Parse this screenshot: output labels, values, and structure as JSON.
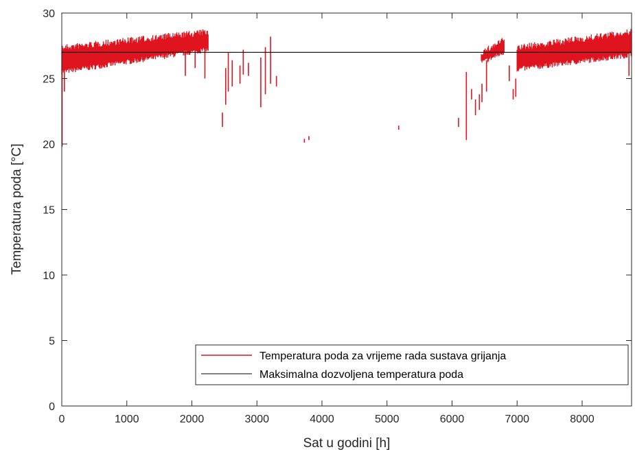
{
  "chart_data": {
    "type": "line",
    "title": "",
    "xlabel": "Sat u godini [h]",
    "ylabel": "Temperatura poda [°C]",
    "xlim": [
      0,
      8760
    ],
    "ylim": [
      0,
      30
    ],
    "xticks": [
      0,
      1000,
      2000,
      3000,
      4000,
      5000,
      6000,
      7000,
      8000
    ],
    "yticks": [
      0,
      5,
      10,
      15,
      20,
      25,
      30
    ],
    "grid": false,
    "legend_position": "bottom-right",
    "series": [
      {
        "name": "Temperatura poda za vrijeme rada sustava grijanja",
        "color": "#e0141e",
        "style": "dense-band-with-gaps",
        "band_segments": [
          {
            "x": [
              0,
              2250
            ],
            "low": [
              25.3,
              27.0
            ],
            "high": [
              27.6,
              28.8
            ]
          },
          {
            "x": [
              6450,
              6800
            ],
            "low": [
              26.0,
              26.8
            ],
            "high": [
              27.2,
              28.2
            ]
          },
          {
            "x": [
              7000,
              8760
            ],
            "low": [
              25.5,
              26.6
            ],
            "high": [
              27.6,
              28.8
            ]
          }
        ],
        "spikes": [
          {
            "x": 5,
            "y_low": 19.8,
            "y_high": 25.5
          },
          {
            "x": 40,
            "y_low": 24.0,
            "y_high": 27.0
          },
          {
            "x": 1900,
            "y_low": 25.2,
            "y_high": 27.8
          },
          {
            "x": 2050,
            "y_low": 25.8,
            "y_high": 28.5
          },
          {
            "x": 2200,
            "y_low": 25.0,
            "y_high": 28.4
          },
          {
            "x": 2470,
            "y_low": 21.3,
            "y_high": 22.4
          },
          {
            "x": 2520,
            "y_low": 23.0,
            "y_high": 25.8
          },
          {
            "x": 2560,
            "y_low": 24.0,
            "y_high": 27.0
          },
          {
            "x": 2620,
            "y_low": 24.4,
            "y_high": 26.4
          },
          {
            "x": 2740,
            "y_low": 24.6,
            "y_high": 26.0
          },
          {
            "x": 2790,
            "y_low": 25.3,
            "y_high": 27.2
          },
          {
            "x": 2870,
            "y_low": 25.2,
            "y_high": 26.2
          },
          {
            "x": 3060,
            "y_low": 22.8,
            "y_high": 26.6
          },
          {
            "x": 3130,
            "y_low": 23.8,
            "y_high": 27.4
          },
          {
            "x": 3210,
            "y_low": 24.6,
            "y_high": 28.2
          },
          {
            "x": 3300,
            "y_low": 24.4,
            "y_high": 25.2
          },
          {
            "x": 3730,
            "y_low": 20.1,
            "y_high": 20.4
          },
          {
            "x": 3800,
            "y_low": 20.3,
            "y_high": 20.6
          },
          {
            "x": 5180,
            "y_low": 21.1,
            "y_high": 21.4
          },
          {
            "x": 6100,
            "y_low": 21.3,
            "y_high": 22.0
          },
          {
            "x": 6220,
            "y_low": 20.3,
            "y_high": 25.5
          },
          {
            "x": 6300,
            "y_low": 23.4,
            "y_high": 24.2
          },
          {
            "x": 6360,
            "y_low": 22.2,
            "y_high": 23.4
          },
          {
            "x": 6420,
            "y_low": 22.6,
            "y_high": 23.8
          },
          {
            "x": 6460,
            "y_low": 23.2,
            "y_high": 24.6
          },
          {
            "x": 6530,
            "y_low": 24.0,
            "y_high": 26.4
          },
          {
            "x": 6880,
            "y_low": 24.8,
            "y_high": 26.0
          },
          {
            "x": 6940,
            "y_low": 23.4,
            "y_high": 24.2
          },
          {
            "x": 6980,
            "y_low": 23.6,
            "y_high": 25.0
          },
          {
            "x": 8720,
            "y_low": 25.2,
            "y_high": 27.0
          }
        ]
      },
      {
        "name": "Maksimalna dozvoljena temperatura poda",
        "color": "#000000",
        "x": [
          0,
          8760
        ],
        "y": [
          27,
          27
        ]
      }
    ]
  }
}
